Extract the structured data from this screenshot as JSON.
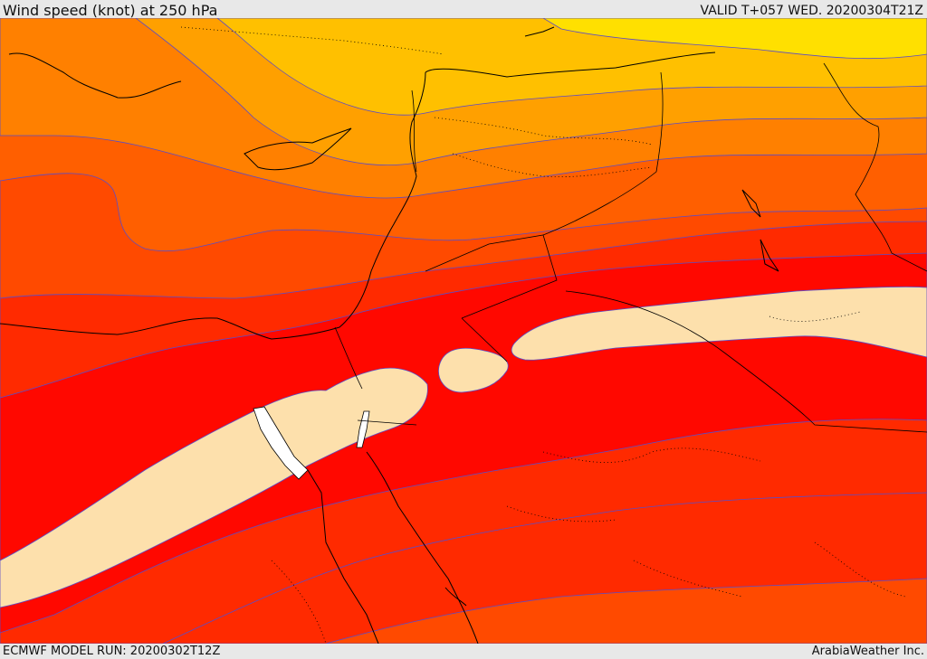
{
  "header": {
    "title": "Wind speed (knot) at 250 hPa",
    "valid_time": "VALID T+057 WED. 20200304T21Z"
  },
  "footer": {
    "model_run": "ECMWF MODEL RUN: 20200302T12Z",
    "credit": "ArabiaWeather Inc."
  },
  "colors": {
    "band_1": "#ffe000",
    "band_2": "#ffc000",
    "band_3": "#ffa000",
    "band_4": "#ff8000",
    "band_5": "#ff5f00",
    "band_6": "#ff4a00",
    "band_7": "#ff2a00",
    "band_8": "#ff0800",
    "jet_core": "#fde0ac",
    "land_border": "#000000",
    "contour_line": "#5a4cc8"
  }
}
